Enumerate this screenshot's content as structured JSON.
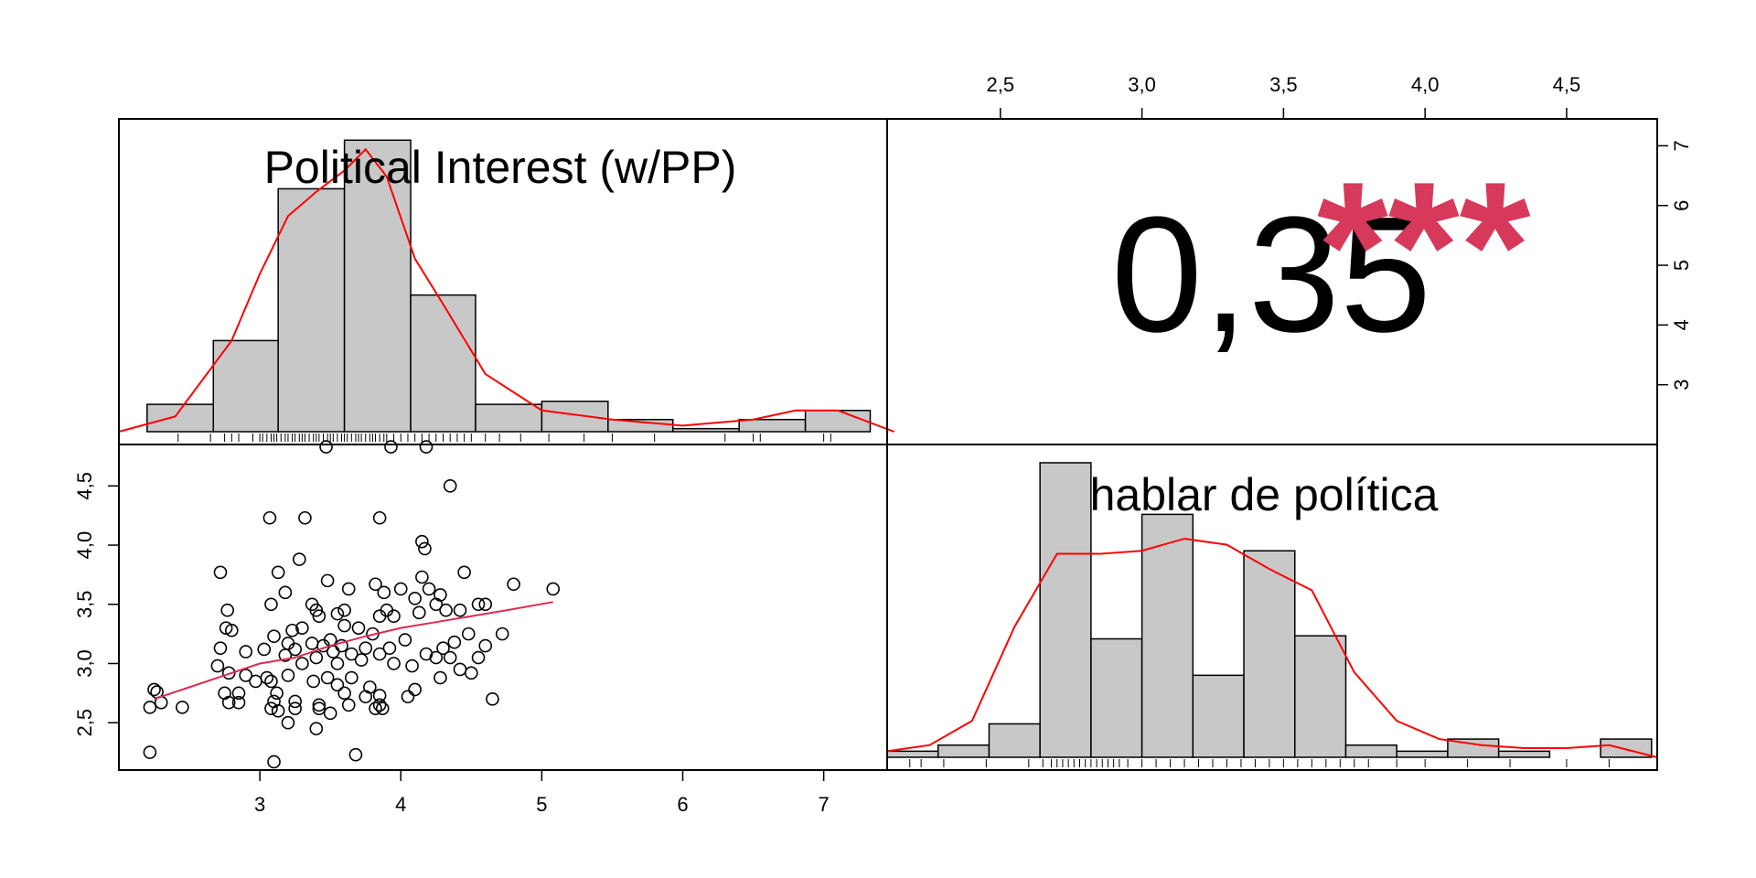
{
  "colors": {
    "bar_fill": "#c8c8c8",
    "density_line": "#ff0000",
    "loess_line": "#dd2c4f",
    "stars": "#d6395a",
    "frame": "#000000"
  },
  "chart_data": [
    {
      "panel": "diagonal-top-left",
      "type": "bar",
      "title": "Political Interest (w/PP)",
      "bin_edges": [
        2.2,
        2.67,
        3.13,
        3.6,
        4.07,
        4.53,
        5.0,
        5.47,
        5.93,
        6.4,
        6.87,
        7.33
      ],
      "values": [
        0.09,
        0.3,
        0.8,
        0.96,
        0.45,
        0.09,
        0.1,
        0.04,
        0.01,
        0.04,
        0.07
      ],
      "density": {
        "x": [
          2.0,
          2.4,
          2.8,
          3.0,
          3.2,
          3.4,
          3.6,
          3.75,
          3.9,
          4.1,
          4.3,
          4.6,
          5.0,
          5.5,
          6.0,
          6.5,
          6.8,
          7.1,
          7.5
        ],
        "y": [
          0.0,
          0.05,
          0.3,
          0.52,
          0.71,
          0.79,
          0.86,
          0.93,
          0.84,
          0.57,
          0.42,
          0.19,
          0.07,
          0.04,
          0.02,
          0.04,
          0.07,
          0.07,
          0.0
        ]
      },
      "rug": [
        2.42,
        2.65,
        2.75,
        2.8,
        2.85,
        2.95,
        3.0,
        3.02,
        3.05,
        3.08,
        3.1,
        3.12,
        3.15,
        3.18,
        3.2,
        3.23,
        3.25,
        3.28,
        3.3,
        3.32,
        3.35,
        3.38,
        3.4,
        3.42,
        3.45,
        3.48,
        3.5,
        3.52,
        3.55,
        3.58,
        3.6,
        3.62,
        3.65,
        3.68,
        3.7,
        3.72,
        3.75,
        3.78,
        3.8,
        3.82,
        3.85,
        3.88,
        3.9,
        3.95,
        4.0,
        4.05,
        4.1,
        4.15,
        4.2,
        4.25,
        4.3,
        4.35,
        4.4,
        4.45,
        4.5,
        4.6,
        4.7,
        4.85,
        5.05,
        5.3,
        5.5,
        5.8,
        6.3,
        6.5,
        6.55,
        7.0,
        7.05
      ],
      "xlim": [
        2.0,
        7.45
      ]
    },
    {
      "panel": "diagonal-bottom-right",
      "type": "bar",
      "title": "hablar de política",
      "bin_edges": [
        2.1,
        2.28,
        2.46,
        2.64,
        2.82,
        3.0,
        3.18,
        3.36,
        3.54,
        3.72,
        3.9,
        4.08,
        4.26,
        4.44,
        4.62,
        4.8
      ],
      "values": [
        0.02,
        0.04,
        0.11,
        0.97,
        0.39,
        0.8,
        0.27,
        0.68,
        0.4,
        0.04,
        0.02,
        0.06,
        0.02,
        0.0,
        0.06
      ],
      "density": {
        "x": [
          2.1,
          2.25,
          2.4,
          2.55,
          2.7,
          2.85,
          3.0,
          3.15,
          3.3,
          3.45,
          3.6,
          3.75,
          3.9,
          4.05,
          4.2,
          4.35,
          4.5,
          4.65,
          4.82
        ],
        "y": [
          0.02,
          0.04,
          0.12,
          0.43,
          0.67,
          0.67,
          0.68,
          0.72,
          0.7,
          0.62,
          0.55,
          0.28,
          0.12,
          0.06,
          0.04,
          0.03,
          0.03,
          0.04,
          0.0
        ]
      },
      "rug": [
        2.18,
        2.22,
        2.3,
        2.45,
        2.6,
        2.65,
        2.68,
        2.7,
        2.72,
        2.74,
        2.76,
        2.78,
        2.8,
        2.82,
        2.84,
        2.86,
        2.88,
        2.9,
        2.92,
        2.95,
        3.0,
        3.05,
        3.1,
        3.15,
        3.2,
        3.25,
        3.3,
        3.35,
        3.4,
        3.45,
        3.5,
        3.55,
        3.6,
        3.65,
        3.7,
        3.75,
        3.8,
        3.9,
        4.0,
        4.15,
        4.3,
        4.5,
        4.65
      ],
      "xlim": [
        2.1,
        4.82
      ]
    },
    {
      "panel": "scatter-bottom-left",
      "type": "scatter",
      "xlim": [
        2.0,
        7.45
      ],
      "ylim": [
        2.1,
        4.85
      ],
      "x_ticks": [
        3,
        4,
        5,
        6,
        7
      ],
      "x_tick_labels": [
        "3",
        "4",
        "5",
        "6",
        "7"
      ],
      "y_ticks": [
        2.5,
        3.0,
        3.5,
        4.0,
        4.5
      ],
      "y_tick_labels": [
        "2,5",
        "3,0",
        "3,5",
        "4,0",
        "4,5"
      ],
      "points": [
        [
          3.47,
          4.83
        ],
        [
          3.93,
          4.83
        ],
        [
          4.18,
          4.83
        ],
        [
          4.35,
          4.5
        ],
        [
          3.07,
          4.23
        ],
        [
          3.32,
          4.23
        ],
        [
          3.85,
          4.23
        ],
        [
          4.15,
          4.03
        ],
        [
          4.17,
          3.97
        ],
        [
          3.28,
          3.88
        ],
        [
          2.72,
          3.77
        ],
        [
          3.13,
          3.77
        ],
        [
          4.45,
          3.77
        ],
        [
          4.15,
          3.73
        ],
        [
          3.48,
          3.7
        ],
        [
          3.82,
          3.67
        ],
        [
          3.63,
          3.63
        ],
        [
          4.8,
          3.67
        ],
        [
          5.08,
          3.63
        ],
        [
          4.0,
          3.63
        ],
        [
          4.2,
          3.63
        ],
        [
          3.18,
          3.6
        ],
        [
          3.88,
          3.6
        ],
        [
          4.28,
          3.58
        ],
        [
          4.1,
          3.55
        ],
        [
          4.25,
          3.5
        ],
        [
          4.55,
          3.5
        ],
        [
          4.6,
          3.5
        ],
        [
          2.77,
          3.45
        ],
        [
          3.08,
          3.5
        ],
        [
          3.37,
          3.5
        ],
        [
          3.4,
          3.45
        ],
        [
          3.6,
          3.45
        ],
        [
          3.9,
          3.45
        ],
        [
          4.13,
          3.43
        ],
        [
          4.32,
          3.45
        ],
        [
          4.42,
          3.45
        ],
        [
          3.55,
          3.42
        ],
        [
          3.42,
          3.4
        ],
        [
          3.85,
          3.4
        ],
        [
          3.95,
          3.4
        ],
        [
          2.76,
          3.3
        ],
        [
          2.8,
          3.28
        ],
        [
          3.23,
          3.28
        ],
        [
          3.3,
          3.3
        ],
        [
          3.6,
          3.32
        ],
        [
          3.7,
          3.3
        ],
        [
          3.8,
          3.25
        ],
        [
          4.48,
          3.25
        ],
        [
          4.72,
          3.25
        ],
        [
          3.1,
          3.23
        ],
        [
          3.5,
          3.2
        ],
        [
          4.03,
          3.2
        ],
        [
          4.38,
          3.18
        ],
        [
          4.6,
          3.15
        ],
        [
          3.2,
          3.17
        ],
        [
          3.37,
          3.17
        ],
        [
          3.45,
          3.15
        ],
        [
          3.58,
          3.15
        ],
        [
          3.75,
          3.13
        ],
        [
          3.92,
          3.13
        ],
        [
          4.3,
          3.13
        ],
        [
          2.72,
          3.13
        ],
        [
          3.03,
          3.12
        ],
        [
          2.9,
          3.1
        ],
        [
          3.25,
          3.12
        ],
        [
          3.52,
          3.1
        ],
        [
          3.65,
          3.08
        ],
        [
          3.85,
          3.08
        ],
        [
          4.18,
          3.08
        ],
        [
          4.25,
          3.05
        ],
        [
          4.35,
          3.05
        ],
        [
          4.55,
          3.05
        ],
        [
          3.18,
          3.07
        ],
        [
          3.4,
          3.05
        ],
        [
          3.72,
          3.03
        ],
        [
          3.95,
          3.0
        ],
        [
          2.7,
          2.98
        ],
        [
          3.3,
          3.0
        ],
        [
          3.55,
          3.0
        ],
        [
          4.08,
          2.98
        ],
        [
          4.42,
          2.95
        ],
        [
          4.5,
          2.92
        ],
        [
          2.78,
          2.92
        ],
        [
          2.9,
          2.9
        ],
        [
          3.05,
          2.88
        ],
        [
          3.2,
          2.9
        ],
        [
          3.48,
          2.88
        ],
        [
          3.65,
          2.88
        ],
        [
          4.28,
          2.88
        ],
        [
          2.97,
          2.85
        ],
        [
          3.08,
          2.85
        ],
        [
          3.38,
          2.85
        ],
        [
          3.55,
          2.82
        ],
        [
          3.78,
          2.8
        ],
        [
          4.1,
          2.78
        ],
        [
          2.25,
          2.78
        ],
        [
          2.27,
          2.76
        ],
        [
          2.75,
          2.75
        ],
        [
          2.85,
          2.75
        ],
        [
          3.12,
          2.75
        ],
        [
          3.6,
          2.75
        ],
        [
          3.75,
          2.72
        ],
        [
          3.85,
          2.73
        ],
        [
          4.05,
          2.72
        ],
        [
          4.65,
          2.7
        ],
        [
          2.3,
          2.67
        ],
        [
          2.78,
          2.67
        ],
        [
          2.85,
          2.67
        ],
        [
          3.1,
          2.68
        ],
        [
          3.25,
          2.68
        ],
        [
          3.42,
          2.65
        ],
        [
          3.63,
          2.65
        ],
        [
          3.85,
          2.65
        ],
        [
          2.22,
          2.63
        ],
        [
          2.45,
          2.63
        ],
        [
          3.08,
          2.62
        ],
        [
          3.13,
          2.6
        ],
        [
          3.25,
          2.62
        ],
        [
          3.42,
          2.62
        ],
        [
          3.5,
          2.58
        ],
        [
          3.82,
          2.62
        ],
        [
          3.87,
          2.62
        ],
        [
          3.2,
          2.5
        ],
        [
          3.4,
          2.45
        ],
        [
          2.22,
          2.25
        ],
        [
          3.68,
          2.23
        ],
        [
          3.1,
          2.17
        ]
      ],
      "loess": {
        "x": [
          2.25,
          2.5,
          2.75,
          3.0,
          3.25,
          3.5,
          3.75,
          4.0,
          4.25,
          4.5,
          4.75,
          5.08
        ],
        "y": [
          2.7,
          2.8,
          2.9,
          3.0,
          3.05,
          3.15,
          3.23,
          3.3,
          3.35,
          3.4,
          3.45,
          3.52
        ]
      }
    },
    {
      "panel": "correlation-top-right",
      "type": "table",
      "value_label": "0,35",
      "stars": "***",
      "x_ticks": [
        2.5,
        3.0,
        3.5,
        4.0,
        4.5
      ],
      "x_tick_labels": [
        "2,5",
        "3,0",
        "3,5",
        "4,0",
        "4,5"
      ],
      "xlim": [
        2.1,
        4.82
      ],
      "y_ticks": [
        3,
        4,
        5,
        6,
        7
      ],
      "y_tick_labels": [
        "3",
        "4",
        "5",
        "6",
        "7"
      ],
      "ylim": [
        2.0,
        7.45
      ]
    }
  ]
}
